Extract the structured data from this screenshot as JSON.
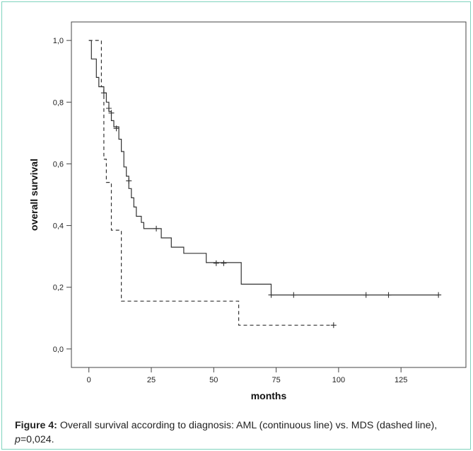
{
  "chart_data": {
    "type": "line",
    "xlabel": "months",
    "ylabel": "overall survival",
    "x_ticks": [
      "0",
      "25",
      "50",
      "75",
      "100",
      "125"
    ],
    "y_ticks": [
      "0,0",
      "0,2",
      "0,4",
      "0,6",
      "0,8",
      "1,0"
    ],
    "xlim": [
      -7,
      151
    ],
    "ylim": [
      -0.06,
      1.06
    ],
    "grid": false,
    "legend": "none",
    "series": [
      {
        "style": "solid",
        "color": "#333333",
        "steps": [
          [
            0,
            1.0
          ],
          [
            1,
            0.94
          ],
          [
            3,
            0.88
          ],
          [
            4,
            0.85
          ],
          [
            6,
            0.83
          ],
          [
            7,
            0.8
          ],
          [
            8,
            0.77
          ],
          [
            9,
            0.74
          ],
          [
            10,
            0.72
          ],
          [
            12,
            0.68
          ],
          [
            13,
            0.64
          ],
          [
            14,
            0.59
          ],
          [
            15,
            0.56
          ],
          [
            16,
            0.52
          ],
          [
            17,
            0.49
          ],
          [
            18,
            0.46
          ],
          [
            19,
            0.43
          ],
          [
            21,
            0.41
          ],
          [
            22,
            0.39
          ],
          [
            29,
            0.36
          ],
          [
            33,
            0.33
          ],
          [
            38,
            0.31
          ],
          [
            47,
            0.28
          ],
          [
            61,
            0.21
          ],
          [
            73,
            0.175
          ],
          [
            140,
            0.175
          ]
        ],
        "censored": [
          [
            6,
            0.83
          ],
          [
            8,
            0.78
          ],
          [
            9,
            0.765
          ],
          [
            11,
            0.715
          ],
          [
            16,
            0.545
          ],
          [
            27,
            0.39
          ],
          [
            51,
            0.278
          ],
          [
            54,
            0.278
          ],
          [
            73,
            0.175
          ],
          [
            82,
            0.175
          ],
          [
            111,
            0.175
          ],
          [
            120,
            0.175
          ],
          [
            140,
            0.175
          ]
        ]
      },
      {
        "style": "dashed",
        "color": "#333333",
        "steps": [
          [
            0,
            1.0
          ],
          [
            3,
            1.0
          ],
          [
            5,
            0.85
          ],
          [
            6,
            0.615
          ],
          [
            7,
            0.54
          ],
          [
            9,
            0.385
          ],
          [
            11,
            0.385
          ],
          [
            13,
            0.155
          ],
          [
            59,
            0.155
          ],
          [
            60,
            0.077
          ],
          [
            98,
            0.077
          ]
        ],
        "censored": [
          [
            98,
            0.077
          ]
        ]
      }
    ]
  },
  "caption": {
    "label": "Figure 4:",
    "text_before": " Overall survival according to diagnosis: AML (continuous line) vs. MDS (dashed line), ",
    "p_symbol": "p",
    "text_after": "=0,024."
  }
}
